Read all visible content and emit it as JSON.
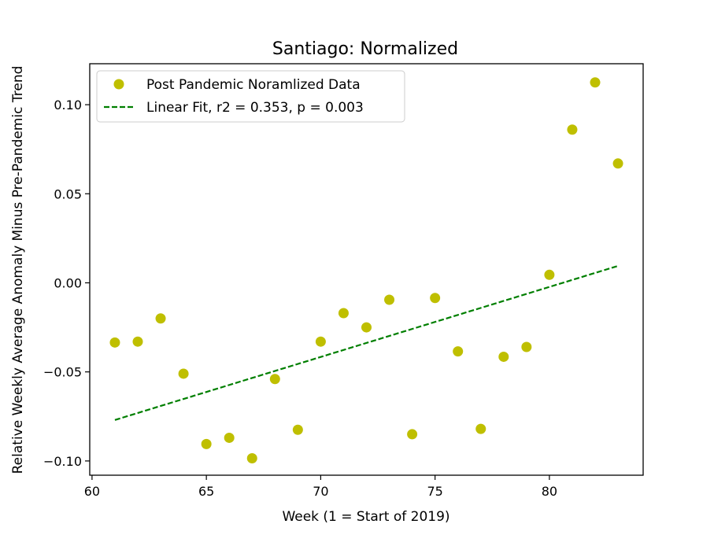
{
  "chart_data": {
    "type": "scatter",
    "title": "Santiago: Normalized",
    "xlabel": "Week (1 = Start of 2019)",
    "ylabel": "Relative Weekly Average Anomaly Minus Pre-Pandemic Trend",
    "xlim": [
      59.9,
      84.1
    ],
    "ylim": [
      -0.108,
      0.123
    ],
    "xticks": [
      60,
      65,
      70,
      75,
      80
    ],
    "xtick_labels": [
      "60",
      "65",
      "70",
      "75",
      "80"
    ],
    "yticks": [
      -0.1,
      -0.05,
      0.0,
      0.05,
      0.1
    ],
    "ytick_labels": [
      "−0.10",
      "−0.05",
      "0.00",
      "0.05",
      "0.10"
    ],
    "grid": false,
    "legend_position": "upper left",
    "series": [
      {
        "name": "Post Pandemic Noramlized Data",
        "kind": "points",
        "color": "#bfbf00",
        "x": [
          61,
          62,
          63,
          64,
          65,
          66,
          67,
          68,
          69,
          70,
          71,
          72,
          73,
          74,
          75,
          76,
          77,
          78,
          79,
          80,
          81,
          82,
          83
        ],
        "y": [
          -0.0335,
          -0.033,
          -0.02,
          -0.051,
          -0.0905,
          -0.087,
          -0.0985,
          -0.054,
          -0.0825,
          -0.033,
          -0.017,
          -0.025,
          -0.0095,
          -0.085,
          -0.0085,
          -0.0385,
          -0.082,
          -0.0415,
          -0.036,
          0.0045,
          0.086,
          0.1125,
          0.067
        ]
      },
      {
        "name": "Linear Fit, r2 = 0.353, p = 0.003",
        "kind": "line",
        "style": "dashed",
        "color": "#007f00",
        "x": [
          61,
          83
        ],
        "y": [
          -0.077,
          0.0095
        ]
      }
    ]
  }
}
